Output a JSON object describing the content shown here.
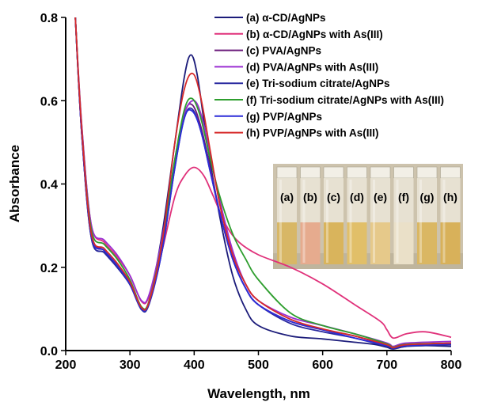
{
  "chart_data": {
    "type": "line",
    "title": "",
    "xlabel": "Wavelength, nm",
    "ylabel": "Absorbance",
    "xlim": [
      200,
      800
    ],
    "ylim": [
      0,
      0.8
    ],
    "xticks": [
      200,
      300,
      400,
      500,
      600,
      700,
      800
    ],
    "yticks": [
      0.0,
      0.2,
      0.4,
      0.6,
      0.8
    ],
    "xtick_labels": [
      "200",
      "300",
      "400",
      "500",
      "600",
      "700",
      "800"
    ],
    "ytick_labels": [
      "0.0",
      "0.2",
      "0.4",
      "0.6",
      "0.8"
    ],
    "grid": false,
    "legend_position": "top-right",
    "series": [
      {
        "name": "(a) α-CD/AgNPs",
        "color": "#1c1c7a",
        "x": [
          215,
          225,
          240,
          260,
          280,
          300,
          318,
          330,
          350,
          370,
          385,
          395,
          405,
          420,
          440,
          460,
          480,
          500,
          550,
          600,
          650,
          680,
          700,
          710,
          730,
          760,
          800
        ],
        "y": [
          0.8,
          0.52,
          0.27,
          0.235,
          0.205,
          0.165,
          0.1,
          0.12,
          0.28,
          0.5,
          0.66,
          0.71,
          0.66,
          0.5,
          0.32,
          0.18,
          0.1,
          0.06,
          0.035,
          0.028,
          0.02,
          0.015,
          0.008,
          0.004,
          0.01,
          0.012,
          0.01
        ]
      },
      {
        "name": "(b) α-CD/AgNPs with As(III)",
        "color": "#e0317a",
        "x": [
          215,
          225,
          240,
          260,
          280,
          300,
          318,
          330,
          350,
          370,
          385,
          400,
          415,
          430,
          450,
          470,
          500,
          550,
          600,
          650,
          690,
          700,
          710,
          730,
          760,
          800
        ],
        "y": [
          0.8,
          0.54,
          0.3,
          0.26,
          0.225,
          0.18,
          0.118,
          0.13,
          0.24,
          0.37,
          0.42,
          0.44,
          0.42,
          0.37,
          0.3,
          0.26,
          0.23,
          0.2,
          0.16,
          0.11,
          0.07,
          0.05,
          0.03,
          0.04,
          0.045,
          0.032
        ]
      },
      {
        "name": "(c)  PVA/AgNPs",
        "color": "#6a1a7a",
        "x": [
          215,
          225,
          240,
          260,
          280,
          300,
          318,
          330,
          350,
          370,
          385,
          397,
          410,
          425,
          440,
          460,
          480,
          500,
          550,
          600,
          650,
          700,
          710,
          730,
          800
        ],
        "y": [
          0.8,
          0.52,
          0.28,
          0.24,
          0.205,
          0.16,
          0.1,
          0.115,
          0.25,
          0.45,
          0.57,
          0.59,
          0.54,
          0.44,
          0.33,
          0.22,
          0.15,
          0.11,
          0.07,
          0.05,
          0.035,
          0.012,
          0.005,
          0.012,
          0.015
        ]
      },
      {
        "name": "(d) PVA/AgNPs with As(III)",
        "color": "#9a2ed2",
        "x": [
          215,
          225,
          240,
          260,
          280,
          300,
          318,
          330,
          350,
          370,
          385,
          400,
          412,
          425,
          440,
          460,
          480,
          500,
          550,
          600,
          650,
          700,
          710,
          730,
          800
        ],
        "y": [
          0.8,
          0.54,
          0.3,
          0.265,
          0.23,
          0.18,
          0.12,
          0.135,
          0.27,
          0.46,
          0.57,
          0.6,
          0.56,
          0.47,
          0.36,
          0.24,
          0.16,
          0.12,
          0.08,
          0.06,
          0.04,
          0.018,
          0.01,
          0.018,
          0.022
        ]
      },
      {
        "name": "(e) Tri-sodium citrate/AgNPs",
        "color": "#2a2aa0",
        "x": [
          215,
          225,
          240,
          260,
          280,
          300,
          318,
          330,
          350,
          370,
          385,
          397,
          410,
          425,
          440,
          460,
          480,
          500,
          550,
          600,
          650,
          700,
          710,
          730,
          800
        ],
        "y": [
          0.8,
          0.52,
          0.27,
          0.235,
          0.2,
          0.158,
          0.098,
          0.112,
          0.24,
          0.44,
          0.56,
          0.58,
          0.53,
          0.43,
          0.33,
          0.22,
          0.15,
          0.11,
          0.065,
          0.045,
          0.03,
          0.01,
          0.004,
          0.01,
          0.014
        ]
      },
      {
        "name": "(f) Tri-sodium citrate/AgNPs with As(III)",
        "color": "#2e9e2e",
        "x": [
          215,
          225,
          240,
          260,
          280,
          300,
          318,
          330,
          350,
          370,
          385,
          397,
          410,
          425,
          440,
          460,
          480,
          500,
          550,
          600,
          650,
          700,
          710,
          730,
          800
        ],
        "y": [
          0.8,
          0.53,
          0.29,
          0.255,
          0.22,
          0.17,
          0.105,
          0.12,
          0.26,
          0.46,
          0.58,
          0.605,
          0.56,
          0.46,
          0.37,
          0.28,
          0.22,
          0.17,
          0.09,
          0.06,
          0.04,
          0.016,
          0.008,
          0.015,
          0.018
        ]
      },
      {
        "name": "(g) PVP/AgNPs",
        "color": "#2c2cd8",
        "x": [
          215,
          225,
          240,
          260,
          280,
          300,
          318,
          330,
          350,
          370,
          385,
          397,
          410,
          425,
          440,
          460,
          480,
          500,
          550,
          600,
          650,
          700,
          710,
          730,
          800
        ],
        "y": [
          0.8,
          0.52,
          0.275,
          0.24,
          0.205,
          0.16,
          0.1,
          0.115,
          0.24,
          0.44,
          0.56,
          0.575,
          0.53,
          0.43,
          0.33,
          0.22,
          0.15,
          0.11,
          0.07,
          0.05,
          0.03,
          0.012,
          0.006,
          0.012,
          0.016
        ]
      },
      {
        "name": "(h) PVP/AgNPs with As(III)",
        "color": "#d62a2a",
        "x": [
          215,
          225,
          240,
          260,
          280,
          300,
          318,
          330,
          350,
          370,
          385,
          398,
          410,
          425,
          440,
          460,
          480,
          500,
          550,
          600,
          650,
          700,
          710,
          730,
          800
        ],
        "y": [
          0.8,
          0.53,
          0.28,
          0.245,
          0.21,
          0.165,
          0.103,
          0.118,
          0.26,
          0.5,
          0.63,
          0.665,
          0.61,
          0.48,
          0.35,
          0.23,
          0.16,
          0.12,
          0.075,
          0.052,
          0.035,
          0.014,
          0.007,
          0.014,
          0.018
        ]
      }
    ]
  },
  "inset": {
    "vial_labels": [
      "(a)",
      "(b)",
      "(c)",
      "(d)",
      "(e)",
      "(f)",
      "(g)",
      "(h)"
    ],
    "liquid_colors": [
      "#d8b766",
      "#e6ab8e",
      "#d9b45c",
      "#e1bf69",
      "#e6c98a",
      "#eae0c8",
      "#dab763",
      "#d8b15a"
    ],
    "background_color": "#cdc3ad"
  }
}
